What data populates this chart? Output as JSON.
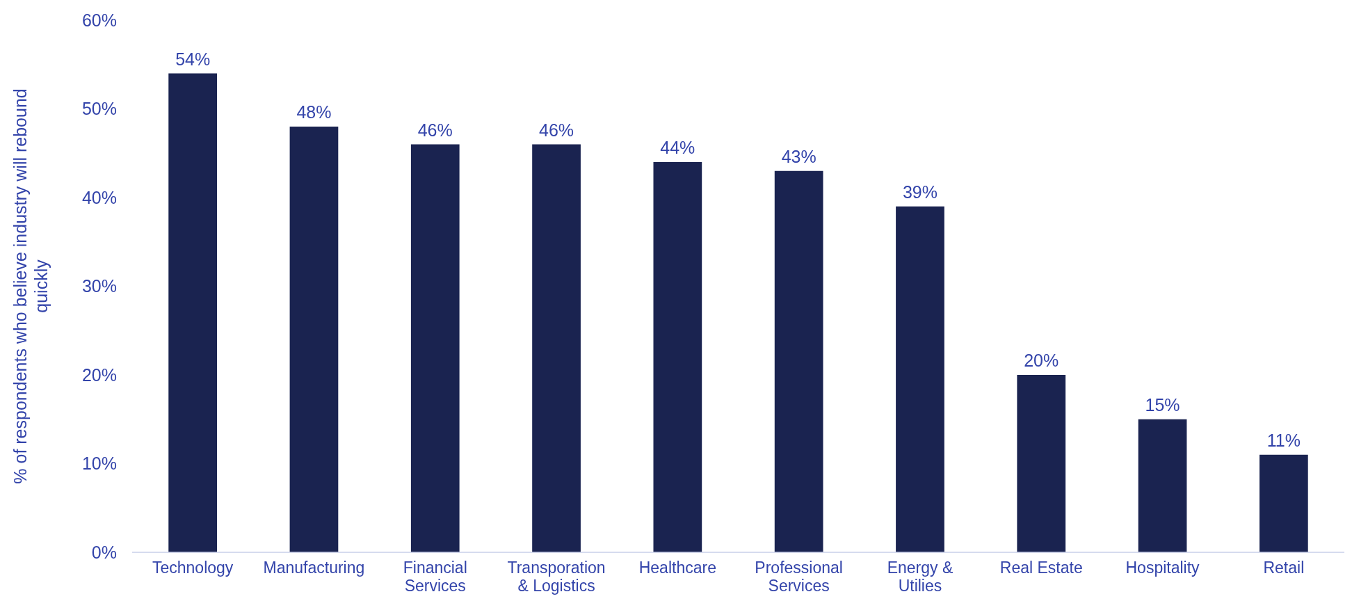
{
  "chart_data": {
    "type": "bar",
    "ylabel": "% of respondents who believe industry will rebound quickly",
    "categories": [
      "Technology",
      "Manufacturing",
      "Financial Services",
      "Transporation & Logistics",
      "Healthcare",
      "Professional Services",
      "Energy & Utilies",
      "Real Estate",
      "Hospitality",
      "Retail"
    ],
    "values": [
      54,
      48,
      46,
      46,
      44,
      43,
      39,
      20,
      15,
      11
    ],
    "color": "#1a2350",
    "ylim": [
      0,
      60
    ],
    "yticks": [
      {
        "value": 0,
        "label": "0%"
      },
      {
        "value": 10,
        "label": "10%"
      },
      {
        "value": 20,
        "label": "20%"
      },
      {
        "value": 30,
        "label": "30%"
      },
      {
        "value": 40,
        "label": "40%"
      },
      {
        "value": 50,
        "label": "50%"
      },
      {
        "value": 60,
        "label": "60%"
      }
    ],
    "value_labels": [
      "54%",
      "48%",
      "46%",
      "46%",
      "44%",
      "43%",
      "39%",
      "20%",
      "15%",
      "11%"
    ],
    "grid": false
  }
}
